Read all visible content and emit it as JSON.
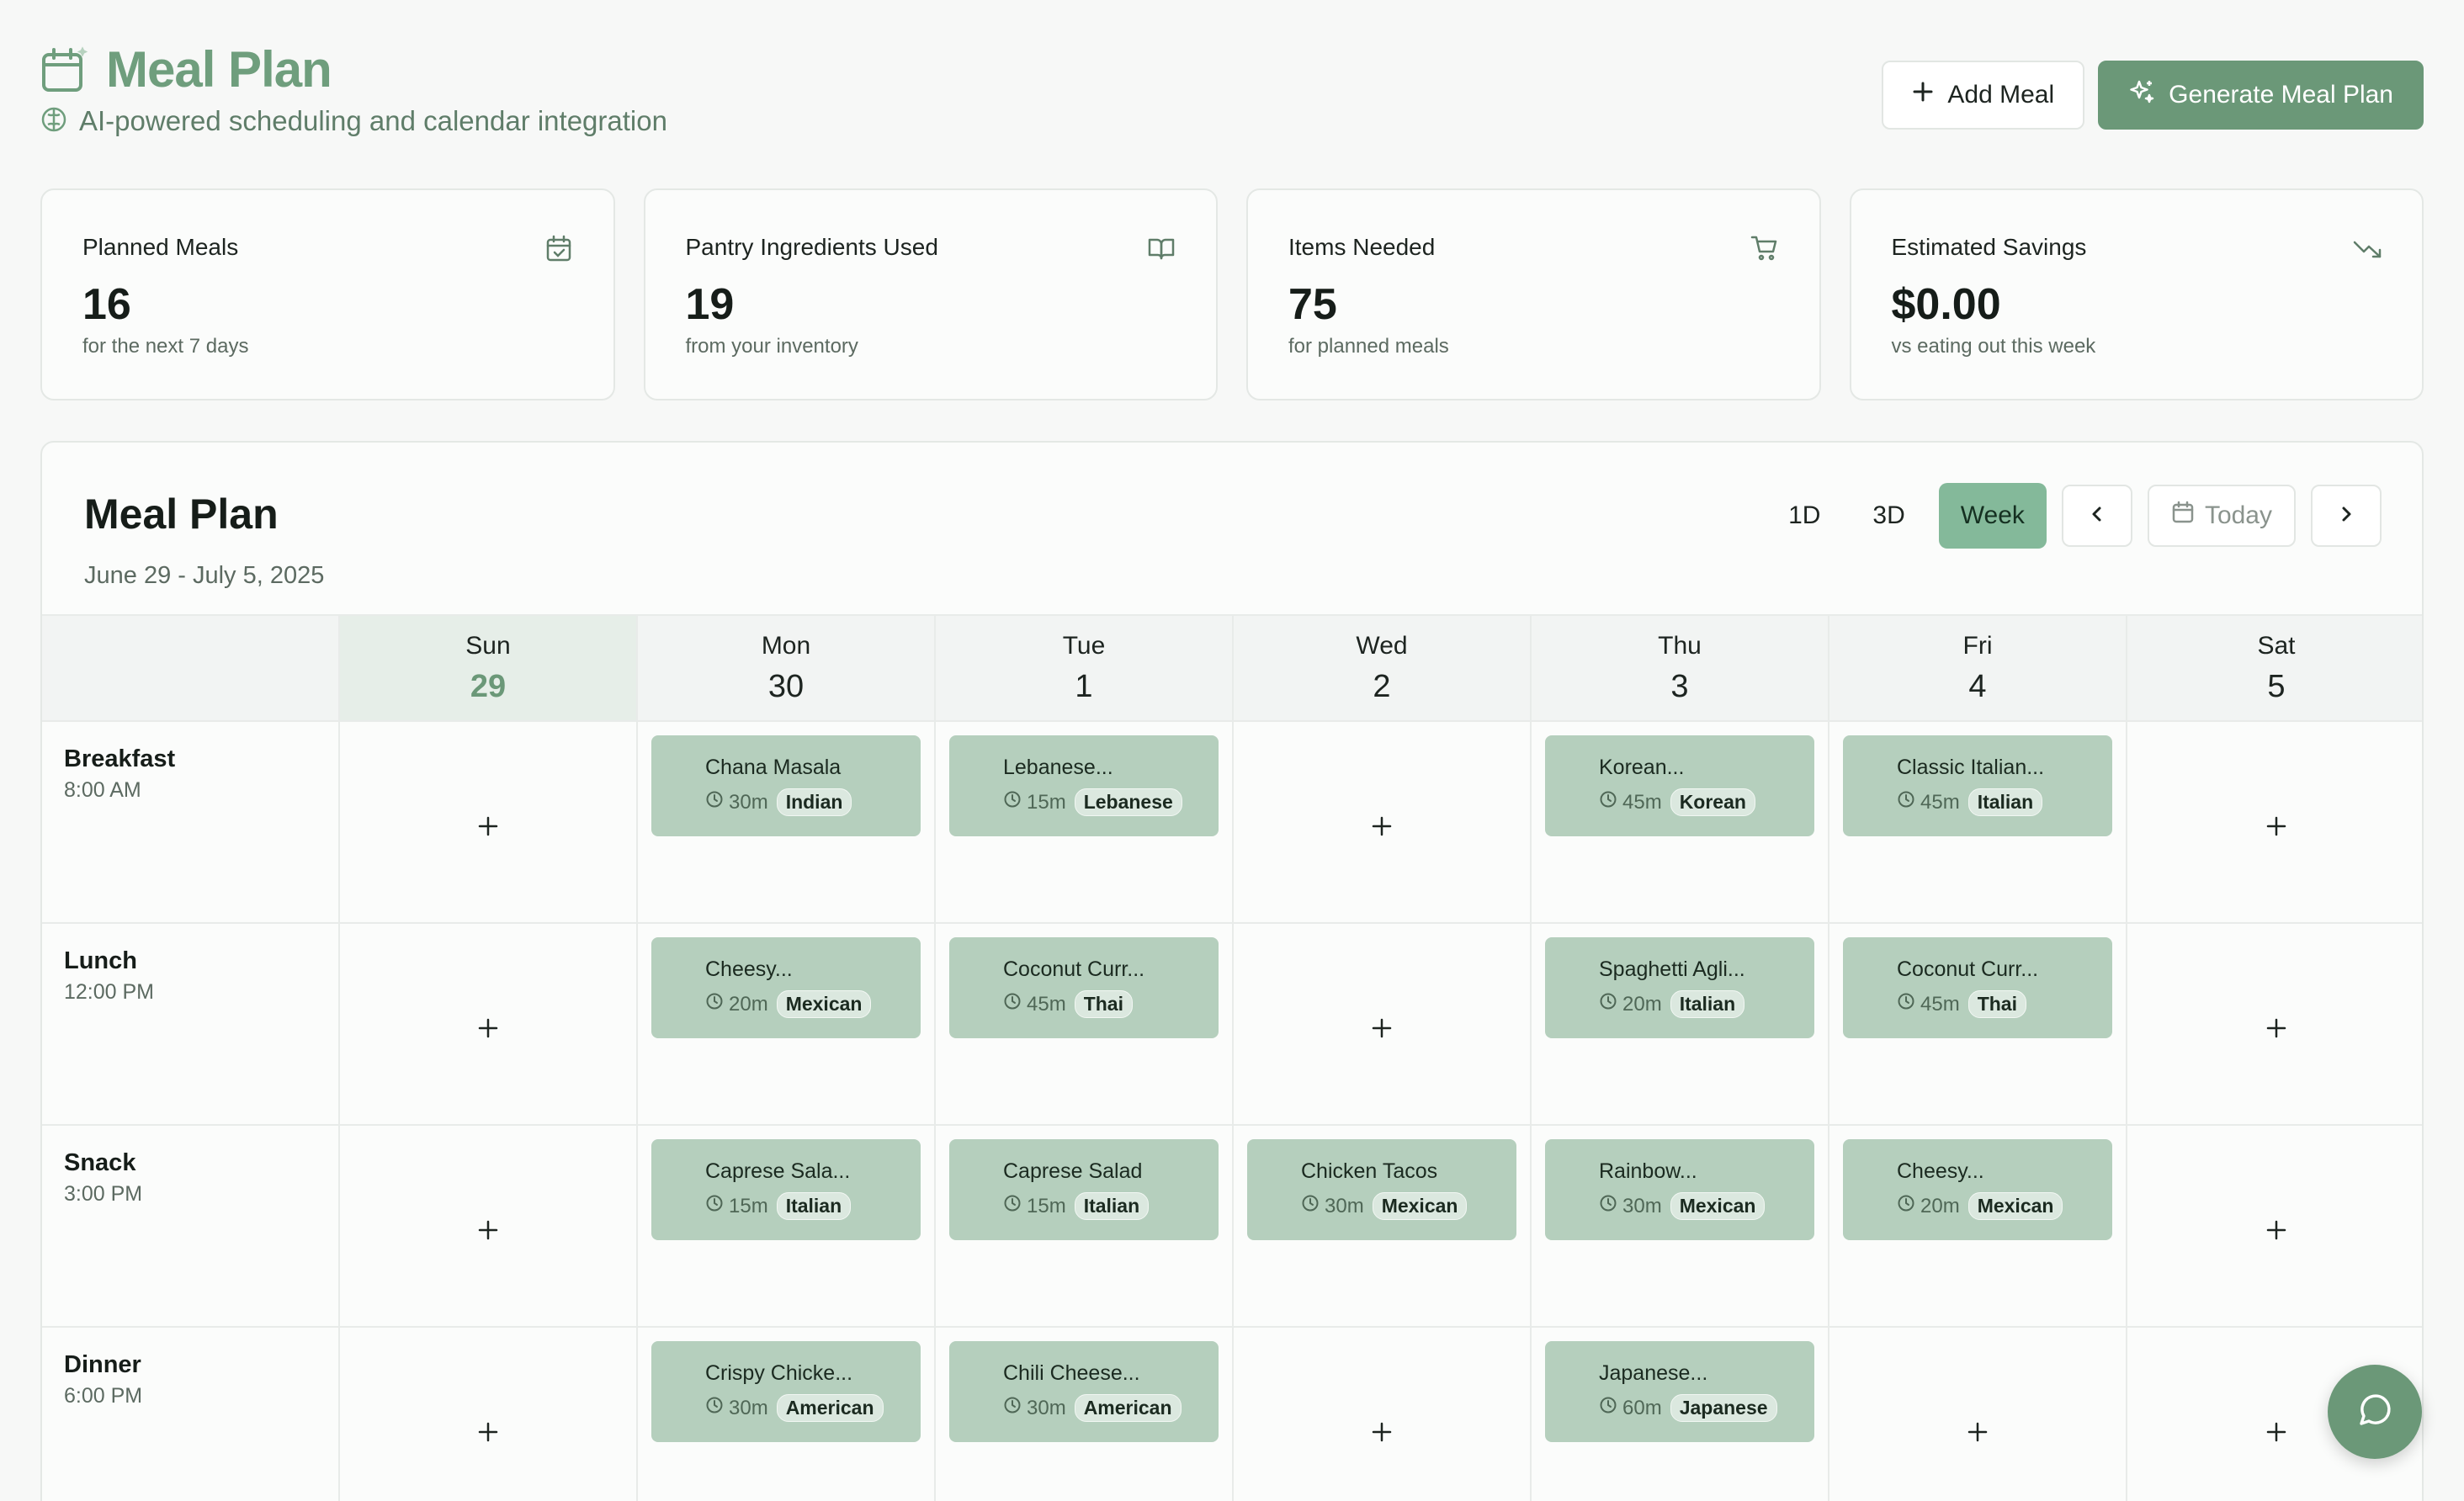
{
  "header": {
    "title": "Meal Plan",
    "subtitle": "AI-powered scheduling and calendar integration",
    "add_meal_label": "Add Meal",
    "generate_label": "Generate Meal Plan"
  },
  "stats": [
    {
      "label": "Planned Meals",
      "value": "16",
      "sub": "for the next 7 days",
      "icon": "calendar-check-icon"
    },
    {
      "label": "Pantry Ingredients Used",
      "value": "19",
      "sub": "from your inventory",
      "icon": "book-open-icon"
    },
    {
      "label": "Items Needed",
      "value": "75",
      "sub": "for planned meals",
      "icon": "shopping-cart-icon"
    },
    {
      "label": "Estimated Savings",
      "value": "$0.00",
      "sub": "vs eating out this week",
      "icon": "trending-down-icon"
    }
  ],
  "planner": {
    "title": "Meal Plan",
    "range": "June 29 - July 5, 2025",
    "views": [
      "1D",
      "3D",
      "Week"
    ],
    "active_view": "Week",
    "today_label": "Today",
    "days": [
      {
        "name": "Sun",
        "num": "29"
      },
      {
        "name": "Mon",
        "num": "30"
      },
      {
        "name": "Tue",
        "num": "1"
      },
      {
        "name": "Wed",
        "num": "2"
      },
      {
        "name": "Thu",
        "num": "3"
      },
      {
        "name": "Fri",
        "num": "4"
      },
      {
        "name": "Sat",
        "num": "5"
      }
    ],
    "slots": [
      {
        "name": "Breakfast",
        "time": "8:00 AM",
        "meals": [
          null,
          {
            "name": "Chana Masala",
            "time": "30m",
            "cuisine": "Indian"
          },
          {
            "name": "Lebanese...",
            "time": "15m",
            "cuisine": "Lebanese"
          },
          null,
          {
            "name": "Korean...",
            "time": "45m",
            "cuisine": "Korean"
          },
          {
            "name": "Classic Italian...",
            "time": "45m",
            "cuisine": "Italian"
          },
          null
        ]
      },
      {
        "name": "Lunch",
        "time": "12:00 PM",
        "meals": [
          null,
          {
            "name": "Cheesy...",
            "time": "20m",
            "cuisine": "Mexican"
          },
          {
            "name": "Coconut Curr...",
            "time": "45m",
            "cuisine": "Thai"
          },
          null,
          {
            "name": "Spaghetti Agli...",
            "time": "20m",
            "cuisine": "Italian"
          },
          {
            "name": "Coconut Curr...",
            "time": "45m",
            "cuisine": "Thai"
          },
          null
        ]
      },
      {
        "name": "Snack",
        "time": "3:00 PM",
        "meals": [
          null,
          {
            "name": "Caprese Sala...",
            "time": "15m",
            "cuisine": "Italian"
          },
          {
            "name": "Caprese Salad",
            "time": "15m",
            "cuisine": "Italian"
          },
          {
            "name": "Chicken Tacos",
            "time": "30m",
            "cuisine": "Mexican"
          },
          {
            "name": "Rainbow...",
            "time": "30m",
            "cuisine": "Mexican"
          },
          {
            "name": "Cheesy...",
            "time": "20m",
            "cuisine": "Mexican"
          },
          null
        ]
      },
      {
        "name": "Dinner",
        "time": "6:00 PM",
        "meals": [
          null,
          {
            "name": "Crispy Chicke...",
            "time": "30m",
            "cuisine": "American"
          },
          {
            "name": "Chili Cheese...",
            "time": "30m",
            "cuisine": "American"
          },
          null,
          {
            "name": "Japanese...",
            "time": "60m",
            "cuisine": "Japanese"
          },
          null,
          null
        ]
      }
    ]
  },
  "colors": {
    "accent": "#6b9878",
    "meal_card": "#b5cfbd",
    "active_view": "#84b99a"
  }
}
